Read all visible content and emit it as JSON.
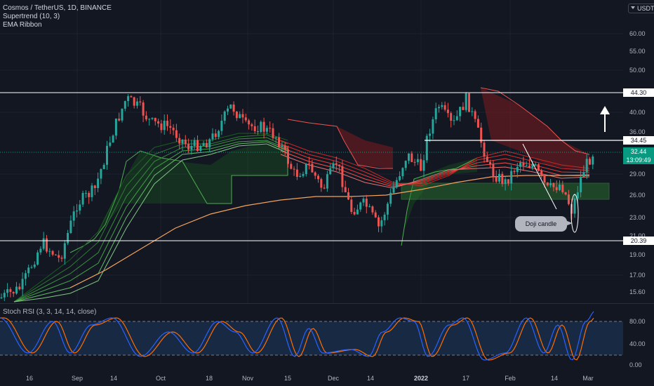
{
  "legend": {
    "title": "Cosmos / TetherUS, 1D, BINANCE",
    "indicator_1": "Supertrend (10, 3)",
    "indicator_2": "EMA Ribbon"
  },
  "currency": "USDT",
  "price_axis": {
    "ticks": [
      "60.00",
      "55.00",
      "50.00",
      "40.00",
      "36.00",
      "29.00",
      "26.00",
      "23.00",
      "21.00",
      "19.00",
      "17.00",
      "15.60"
    ],
    "labels": {
      "level_high": "44.30",
      "level_mid": "34.45",
      "current_price": "32.44",
      "countdown": "13:09:49",
      "level_low": "20.39"
    }
  },
  "oscillator": {
    "title": "Stoch RSI (3, 3, 14, 14, close)",
    "ticks": [
      "80.00",
      "40.00",
      "0.00"
    ],
    "levels": [
      80,
      20
    ]
  },
  "time_axis": {
    "ticks": [
      "16",
      "Sep",
      "14",
      "Oct",
      "18",
      "Nov",
      "15",
      "Dec",
      "14",
      "2022",
      "17",
      "Feb",
      "14",
      "Mar"
    ],
    "bold_tick": "2022"
  },
  "annotation": {
    "callout": "Doji candle"
  },
  "colors": {
    "background": "#131722",
    "bull": "#26a69a",
    "bear": "#ef5350",
    "ema200": "#f5a25d",
    "stoch_k": "#2962ff",
    "stoch_d": "#ff6d00",
    "level_line": "#ffffff"
  },
  "icons": {
    "arrow": "up-arrow-icon"
  }
}
